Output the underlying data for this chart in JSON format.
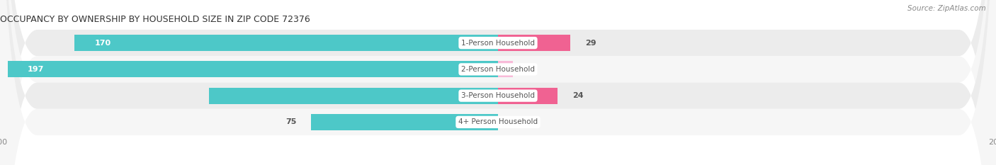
{
  "title": "OCCUPANCY BY OWNERSHIP BY HOUSEHOLD SIZE IN ZIP CODE 72376",
  "source": "Source: ZipAtlas.com",
  "categories": [
    "1-Person Household",
    "2-Person Household",
    "3-Person Household",
    "4+ Person Household"
  ],
  "owner_values": [
    170,
    197,
    116,
    75
  ],
  "renter_values": [
    29,
    6,
    24,
    0
  ],
  "owner_color": "#4DC8C8",
  "renter_color": "#F06292",
  "renter_color_light": "#F8BBD9",
  "xlim": [
    -200,
    200
  ],
  "bar_height": 0.62,
  "row_colors": [
    "#ECECEC",
    "#F6F6F6",
    "#ECECEC",
    "#F6F6F6"
  ],
  "title_fontsize": 9,
  "source_fontsize": 7.5,
  "label_fontsize": 8,
  "cat_fontsize": 7.5
}
